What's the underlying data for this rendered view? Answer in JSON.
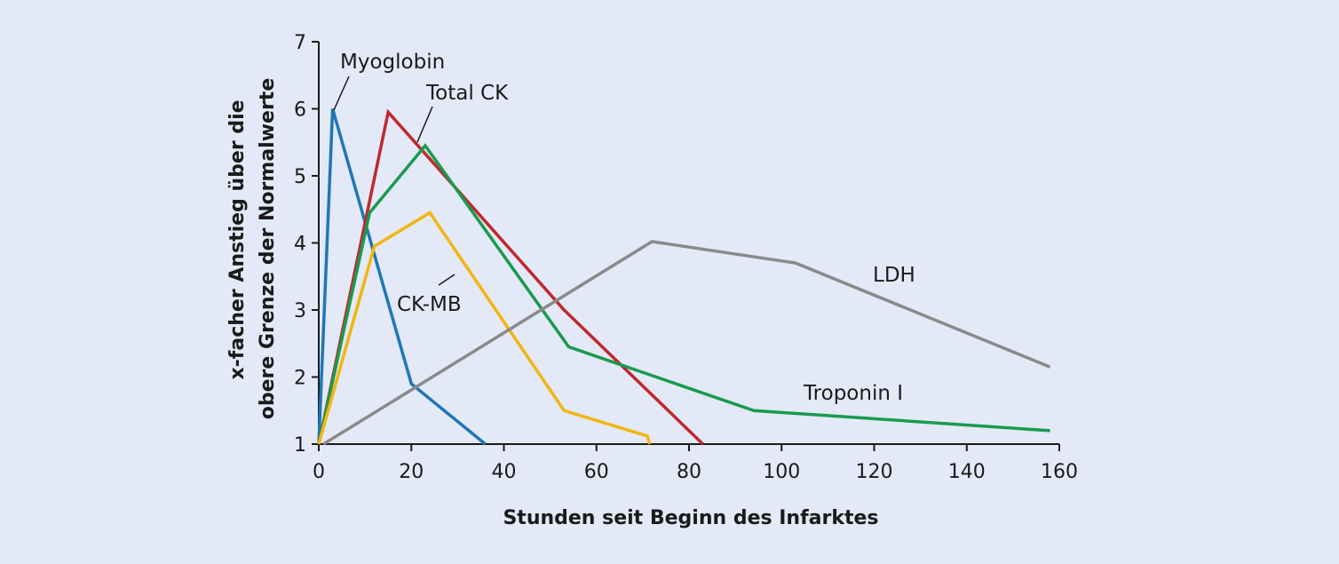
{
  "chart_data": {
    "type": "line",
    "title": "",
    "xlabel": "Stunden seit Beginn des Infarktes",
    "ylabel_lines": [
      "x-facher Anstieg über  die",
      "obere Grenze der Normalwerte"
    ],
    "xlim": [
      0,
      160
    ],
    "ylim": [
      1,
      7
    ],
    "xticks": [
      0,
      20,
      40,
      60,
      80,
      100,
      120,
      140,
      160
    ],
    "yticks": [
      1,
      2,
      3,
      4,
      5,
      6,
      7
    ],
    "grid": false,
    "legend": "none (series labeled directly on chart)",
    "series": [
      {
        "name": "Myoglobin",
        "color": "#1f77b4",
        "x": [
          0,
          3,
          20,
          36
        ],
        "y": [
          1,
          6.0,
          1.9,
          1.0
        ]
      },
      {
        "name": "Total CK",
        "color": "#c0282d",
        "x": [
          0,
          15,
          53,
          83
        ],
        "y": [
          1,
          5.95,
          3.0,
          1.0
        ]
      },
      {
        "name": "Troponin I",
        "color": "#1a9a4e",
        "x": [
          0,
          11,
          23,
          54,
          94,
          158
        ],
        "y": [
          1,
          4.45,
          5.45,
          2.45,
          1.5,
          1.2
        ]
      },
      {
        "name": "CK-MB",
        "color": "#f2b512",
        "x": [
          0,
          12,
          24,
          53,
          71,
          71.5
        ],
        "y": [
          1,
          3.95,
          4.45,
          1.5,
          1.12,
          1.0
        ]
      },
      {
        "name": "LDH",
        "color": "#8a8a8a",
        "x": [
          1,
          72,
          103,
          158
        ],
        "y": [
          1,
          4.02,
          3.7,
          2.15
        ]
      }
    ]
  }
}
